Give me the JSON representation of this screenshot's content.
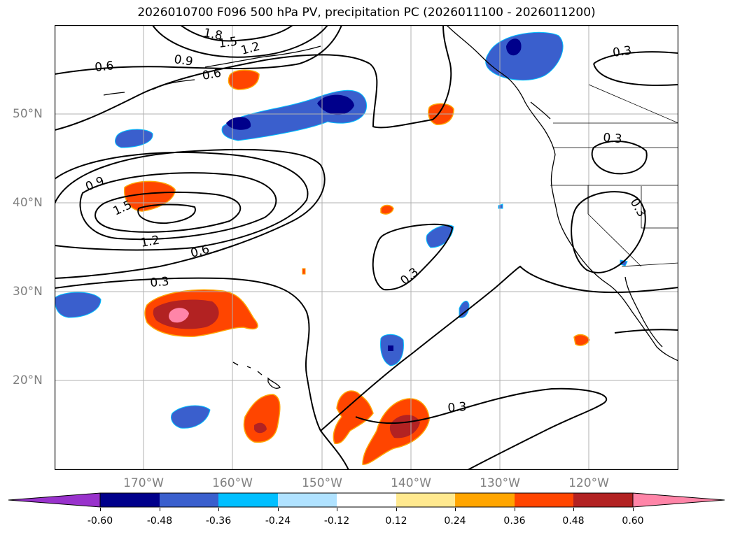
{
  "title": "2026010700 F096 500 hPa PV, precipitation PC (2026011100 - 2026011200)",
  "lat_ticks": [
    "50°N",
    "40°N",
    "30°N",
    "20°N"
  ],
  "lon_ticks": [
    "170°W",
    "160°W",
    "150°W",
    "140°W",
    "130°W",
    "120°W"
  ],
  "contour_labels": [
    "1.8",
    "1.5",
    "1.2",
    "0.9",
    "0.6",
    "0.6",
    "0.3",
    "0.3",
    "0.9",
    "1.5",
    "1.2",
    "0.6",
    "0.3",
    "0.3",
    "0.3",
    "0.3"
  ],
  "colorbar": {
    "tick_labels": [
      "-0.60",
      "-0.48",
      "-0.36",
      "-0.24",
      "-0.12",
      "0.12",
      "0.24",
      "0.36",
      "0.48",
      "0.60"
    ],
    "colors": [
      "#9932cc",
      "#00008b",
      "#3a5fcd",
      "#00bfff",
      "#b0e2ff",
      "#ffffff",
      "#ffe98f",
      "#ffa500",
      "#ff4500",
      "#b22222",
      "#ff85a8"
    ]
  },
  "precip_colors": {
    "neg_strong": "#00008b",
    "neg_mid": "#3a5fcd",
    "neg_weak": "#00bfff",
    "neg_faint": "#b0e2ff",
    "pos_faint": "#ffe98f",
    "pos_weak": "#ffa500",
    "pos_mid": "#ff4500",
    "pos_strong": "#b22222",
    "pos_max": "#ff85a8"
  }
}
